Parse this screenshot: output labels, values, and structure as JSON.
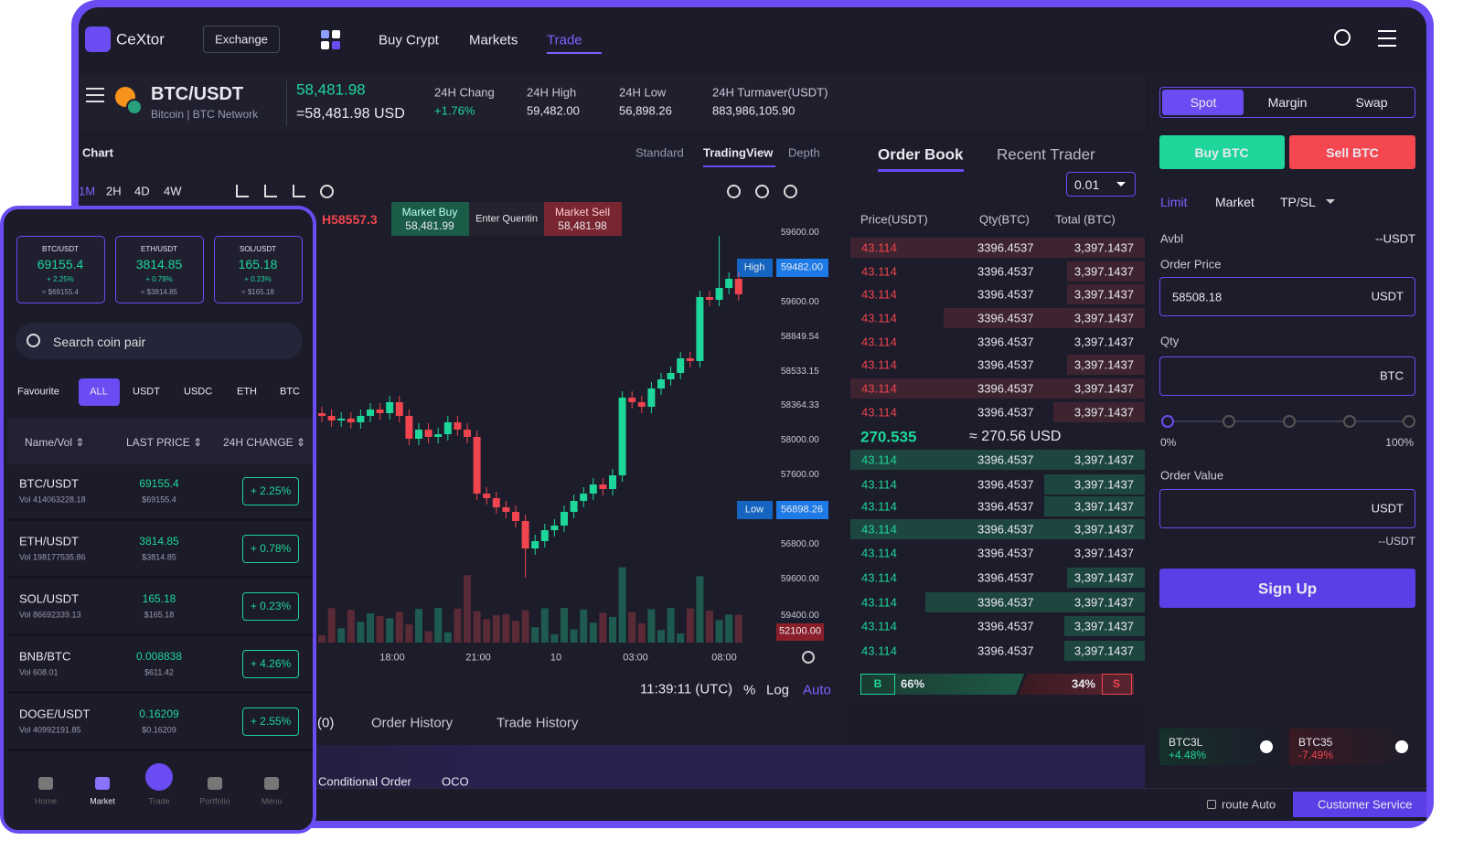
{
  "nav": {
    "brand": "CeXtor",
    "exchange": "Exchange",
    "menu": [
      "Buy Crypt",
      "Markets",
      "Trade"
    ]
  },
  "pair": {
    "symbol": "BTC/USDT",
    "sub": "Bitcoin | BTC Network",
    "price": "58,481.98",
    "price_usd": "=58,481.98 USD",
    "stats": [
      {
        "label": "24H Chang",
        "value": "+1.76%"
      },
      {
        "label": "24H High",
        "value": "59,482.00"
      },
      {
        "label": "24H Low",
        "value": "56,898.26"
      },
      {
        "label": "24H Turmaver(USDT)",
        "value": "883,986,105.90"
      }
    ]
  },
  "chart": {
    "title": "Chart",
    "views": [
      "Standard",
      "TradingView",
      "Depth"
    ],
    "intervals": [
      "1M",
      "2H",
      "4D",
      "4W"
    ],
    "ticker": "H58557.3",
    "market_buy": {
      "label": "Market Buy",
      "value": "58,481.99"
    },
    "enter": "Enter Quentin",
    "market_sell": {
      "label": "Market Sell",
      "value": "58,481.98"
    },
    "price_axis": [
      "59600.00",
      "59600.00",
      "58849.54",
      "58533.15",
      "58364.33",
      "58000.00",
      "57600.00",
      "56800.00",
      "59600.00",
      "59400.00"
    ],
    "high": {
      "label": "High",
      "value": "59482.00"
    },
    "low": {
      "label": "Low",
      "value": "56898.26"
    },
    "current": "52100.00",
    "time_axis": [
      "18:00",
      "21:00",
      "10",
      "03:00",
      "08:00"
    ],
    "clock": "11:39:11 (UTC)",
    "scale": [
      "%",
      "Log",
      "Auto"
    ]
  },
  "bottom_tabs": [
    "(0)",
    "Order History",
    "Trade History"
  ],
  "sub_tabs": [
    "Conditional Order",
    "OCO"
  ],
  "orderbook": {
    "tabs": [
      "Order Book",
      "Recent Trader"
    ],
    "step": "0.01",
    "headers": [
      "Price(USDT)",
      "Qty(BTC)",
      "Total (BTC)"
    ],
    "asks": [
      [
        "43.114",
        "3396.4537",
        "3,397.1437"
      ],
      [
        "43.114",
        "3396.4537",
        "3,397.1437"
      ],
      [
        "43.114",
        "3396.4537",
        "3,397.1437"
      ],
      [
        "43.114",
        "3396.4537",
        "3,397.1437"
      ],
      [
        "43.114",
        "3396.4537",
        "3,397.1437"
      ],
      [
        "43.114",
        "3396.4537",
        "3,397.1437"
      ],
      [
        "43.114",
        "3396.4537",
        "3,397.1437"
      ],
      [
        "43.114",
        "3396.4537",
        "3,397.1437"
      ]
    ],
    "mid": "270.535",
    "mid_usd": "≈ 270.56 USD",
    "bids": [
      [
        "43.114",
        "3396.4537",
        "3,397.1437"
      ],
      [
        "43.114",
        "3396.4537",
        "3,397.1437"
      ],
      [
        "43.114",
        "3396.4537",
        "3,397.1437"
      ],
      [
        "43.114",
        "3396.4537",
        "3,397.1437"
      ],
      [
        "43.114",
        "3396.4537",
        "3,397.1437"
      ],
      [
        "43.114",
        "3396.4537",
        "3,397.1437"
      ],
      [
        "43.114",
        "3396.4537",
        "3,397.1437"
      ],
      [
        "43.114",
        "3396.4537",
        "3,397.1437"
      ],
      [
        "43.114",
        "3396.4537",
        "3,397.1437"
      ]
    ],
    "ratio": {
      "buy": "B",
      "buy_pct": "66%",
      "sell_pct": "34%",
      "sell": "S"
    }
  },
  "trade": {
    "modes": [
      "Spot",
      "Margin",
      "Swap"
    ],
    "buy": "Buy BTC",
    "sell": "Sell BTC",
    "order_types": [
      "Limit",
      "Market",
      "TP/SL"
    ],
    "avbl": "Avbl",
    "avbl_value": "--USDT",
    "order_price": "Order Price",
    "price_value": "58508.18",
    "price_unit": "USDT",
    "qty": "Qty",
    "qty_unit": "BTC",
    "slider_min": "0%",
    "slider_max": "100%",
    "order_value": "Order Value",
    "value_unit": "USDT",
    "value_hint": "--USDT",
    "signup": "Sign Up",
    "etf": [
      {
        "name": "BTC3L",
        "change": "+4.48%"
      },
      {
        "name": "BTC35",
        "change": "-7.49%"
      }
    ]
  },
  "footer": {
    "route": "route Auto",
    "service": "Customer Service"
  },
  "mobile": {
    "tickers": [
      {
        "pair": "BTC/USDT",
        "price": "69155.4",
        "change": "+ 2.25%",
        "usd": "≈ $69155.4"
      },
      {
        "pair": "ETH/USDT",
        "price": "3814.85",
        "change": "+ 0.78%",
        "usd": "≈ $3814.85"
      },
      {
        "pair": "SOL/USDT",
        "price": "165.18",
        "change": "+ 0.23%",
        "usd": "≈ $165.18"
      }
    ],
    "search": "Search coin pair",
    "filters": [
      "Favourite",
      "ALL",
      "USDT",
      "USDC",
      "ETH",
      "BTC"
    ],
    "headers": [
      "Name/Vol ⇕",
      "LAST PRICE ⇕",
      "24H CHANGE ⇕"
    ],
    "rows": [
      {
        "pair": "BTC/USDT",
        "vol": "Vol 414063228.18",
        "price": "69155.4",
        "usd": "$69155.4",
        "change": "+ 2.25%"
      },
      {
        "pair": "ETH/USDT",
        "vol": "Vol 198177535.86",
        "price": "3814.85",
        "usd": "$3814.85",
        "change": "+ 0.78%"
      },
      {
        "pair": "SOL/USDT",
        "vol": "Vol 86692339.13",
        "price": "165.18",
        "usd": "$165.18",
        "change": "+ 0.23%"
      },
      {
        "pair": "BNB/BTC",
        "vol": "Vol 608.01",
        "price": "0.008838",
        "usd": "$611.42",
        "change": "+ 4.26%"
      },
      {
        "pair": "DOGE/USDT",
        "vol": "Vol 40992191.85",
        "price": "0.16209",
        "usd": "$0.16209",
        "change": "+ 2.55%"
      }
    ],
    "nav": [
      "Home",
      "Market",
      "Trade",
      "Portfolio",
      "Menu"
    ]
  }
}
